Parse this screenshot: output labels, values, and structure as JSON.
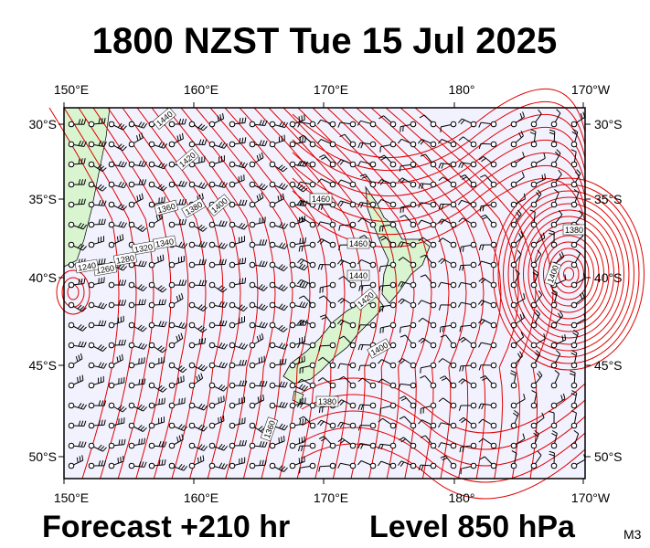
{
  "header": {
    "title": "1800 NZST Tue 15 Jul 2025"
  },
  "axes": {
    "lon_labels": [
      "150°E",
      "160°E",
      "170°E",
      "180°",
      "170°W"
    ],
    "lat_labels": [
      "30°S",
      "35°S",
      "40°S",
      "45°S",
      "50°S"
    ]
  },
  "contour_labels": [
    "1440",
    "1420",
    "1400",
    "1380",
    "1360",
    "1340",
    "1320",
    "1280",
    "1260",
    "1240",
    "1460",
    "1460",
    "1440",
    "1420",
    "1400",
    "1380",
    "1360",
    "1380",
    "1400"
  ],
  "footer": {
    "forecast": "Forecast +210 hr",
    "level": "Level 850 hPa",
    "code": "M3"
  }
}
